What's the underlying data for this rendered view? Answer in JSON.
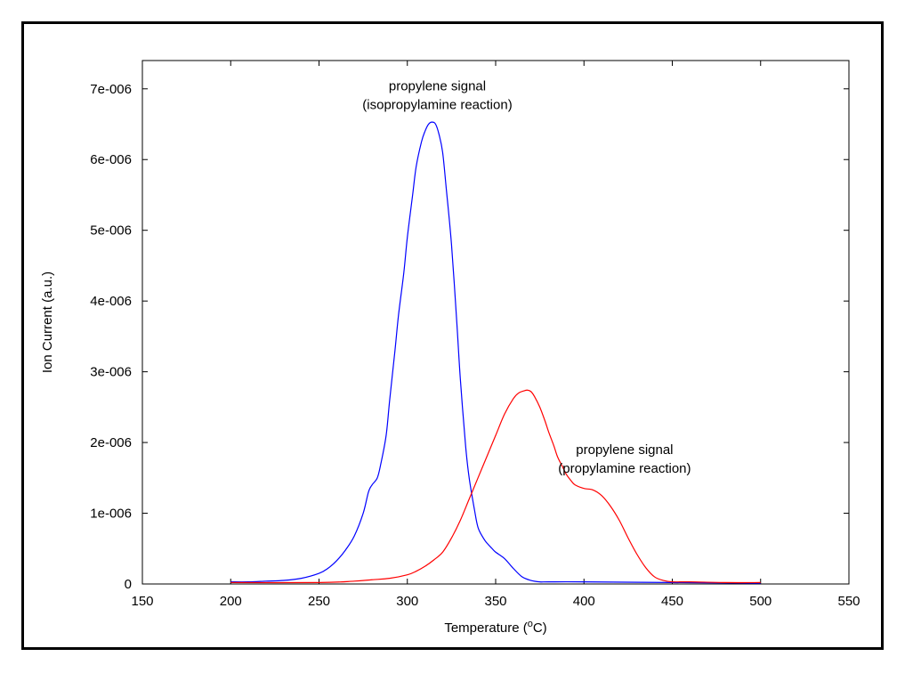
{
  "chart_data": {
    "type": "line",
    "title": "",
    "xlabel": {
      "text": "Temperature (",
      "superscript": "o",
      "suffix": "C)"
    },
    "ylabel": "Ion Current (a.u.)",
    "xlim": [
      150,
      550
    ],
    "ylim": [
      0,
      7.4e-06
    ],
    "xticks": [
      150,
      200,
      250,
      300,
      350,
      400,
      450,
      500,
      550
    ],
    "xtick_labels": [
      "150",
      "200",
      "250",
      "300",
      "350",
      "400",
      "450",
      "500",
      "550"
    ],
    "yticks": [
      0,
      1e-06,
      2e-06,
      3e-06,
      4e-06,
      5e-06,
      6e-06,
      7e-06
    ],
    "ytick_labels": [
      "0",
      "1e-006",
      "2e-006",
      "3e-006",
      "4e-006",
      "5e-006",
      "6e-006",
      "7e-006"
    ],
    "grid": false,
    "series": [
      {
        "color": "#0000ff",
        "x": [
          200,
          210,
          220,
          230,
          240,
          250,
          255,
          260,
          265,
          270,
          275,
          278,
          280,
          283,
          285,
          288,
          290,
          293,
          295,
          298,
          300,
          303,
          305,
          308,
          310,
          312,
          314,
          316,
          318,
          320,
          322,
          325,
          328,
          330,
          333,
          335,
          338,
          340,
          343,
          345,
          348,
          350,
          355,
          360,
          365,
          370,
          375,
          380,
          400,
          450,
          500
        ],
        "y": [
          3e-08,
          3e-08,
          4e-08,
          5e-08,
          8e-08,
          1.5e-07,
          2.2e-07,
          3.3e-07,
          4.8e-07,
          6.8e-07,
          1e-06,
          1.3e-06,
          1.4e-06,
          1.5e-06,
          1.7e-06,
          2.1e-06,
          2.6e-06,
          3.3e-06,
          3.8e-06,
          4.4e-06,
          4.9e-06,
          5.5e-06,
          5.9e-06,
          6.25e-06,
          6.4e-06,
          6.5e-06,
          6.53e-06,
          6.5e-06,
          6.35e-06,
          6.1e-06,
          5.6e-06,
          4.8e-06,
          3.7e-06,
          2.9e-06,
          1.95e-06,
          1.5e-06,
          1.05e-06,
          8e-07,
          6.5e-07,
          5.8e-07,
          5e-07,
          4.5e-07,
          3.6e-07,
          2.2e-07,
          1e-07,
          5e-08,
          3e-08,
          3e-08,
          3e-08,
          2e-08,
          1e-08
        ]
      },
      {
        "color": "#ff0000",
        "x": [
          200,
          250,
          270,
          280,
          290,
          300,
          305,
          310,
          315,
          320,
          325,
          330,
          335,
          340,
          345,
          350,
          355,
          360,
          363,
          366,
          368,
          370,
          372,
          375,
          378,
          380,
          383,
          385,
          388,
          390,
          393,
          395,
          400,
          405,
          410,
          415,
          420,
          425,
          430,
          435,
          440,
          445,
          450,
          460,
          480,
          500
        ],
        "y": [
          2e-08,
          2e-08,
          4e-08,
          6e-08,
          8e-08,
          1.3e-07,
          1.8e-07,
          2.5e-07,
          3.4e-07,
          4.5e-07,
          6.5e-07,
          9e-07,
          1.2e-06,
          1.5e-06,
          1.8e-06,
          2.1e-06,
          2.4e-06,
          2.62e-06,
          2.7e-06,
          2.73e-06,
          2.74e-06,
          2.72e-06,
          2.65e-06,
          2.5e-06,
          2.3e-06,
          2.15e-06,
          1.95e-06,
          1.8e-06,
          1.65e-06,
          1.55e-06,
          1.45e-06,
          1.4e-06,
          1.35e-06,
          1.33e-06,
          1.25e-06,
          1.1e-06,
          9e-07,
          6.5e-07,
          4.2e-07,
          2.3e-07,
          1e-07,
          5e-08,
          3e-08,
          3e-08,
          2e-08,
          2e-08
        ]
      }
    ],
    "annotations": [
      {
        "lines": [
          "propylene signal",
          "(isopropylamine reaction)"
        ],
        "x": 317,
        "y": 6.98e-06
      },
      {
        "lines": [
          "propylene signal",
          "(propylamine reaction)"
        ],
        "x": 423,
        "y": 1.84e-06
      }
    ]
  }
}
